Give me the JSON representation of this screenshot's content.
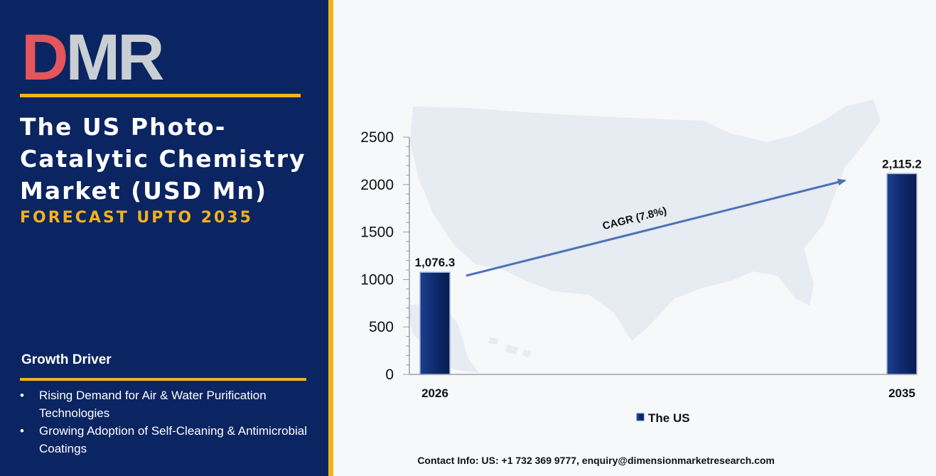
{
  "brand": {
    "logo_text": "DMR",
    "colors": {
      "navy": "#0b2462",
      "gold": "#f2b21b",
      "logo_red": "#e4555c",
      "logo_gray": "#c9cfd3",
      "bar": "#0e2a6e",
      "arrow": "#4a72b8"
    }
  },
  "panel": {
    "title": "The US Photo-Catalytic Chemistry Market (USD Mn)",
    "subtitle": "FORECAST UPTO 2035",
    "growth_driver": {
      "heading": "Growth Driver",
      "items": [
        "Rising Demand for Air & Water Purification Technologies",
        "Growing Adoption of Self-Cleaning & Antimicrobial Coatings"
      ]
    }
  },
  "chart_data": {
    "type": "bar",
    "categories": [
      "2026",
      "2035"
    ],
    "series": [
      {
        "name": "The US",
        "values": [
          1076.3,
          2115.2
        ]
      }
    ],
    "data_labels": [
      "1,076.3",
      "2,115.2"
    ],
    "ylim": [
      0,
      2500
    ],
    "yticks": [
      0,
      500,
      1000,
      1500,
      2000,
      2500
    ],
    "annotation": "CAGR (7.8%)",
    "legend_position": "bottom",
    "grid": false,
    "background_icon": "usa-map-silhouette"
  },
  "footer": {
    "contact": "Contact Info: US: +1 732 369 9777, enquiry@dimensionmarketresearch.com"
  }
}
